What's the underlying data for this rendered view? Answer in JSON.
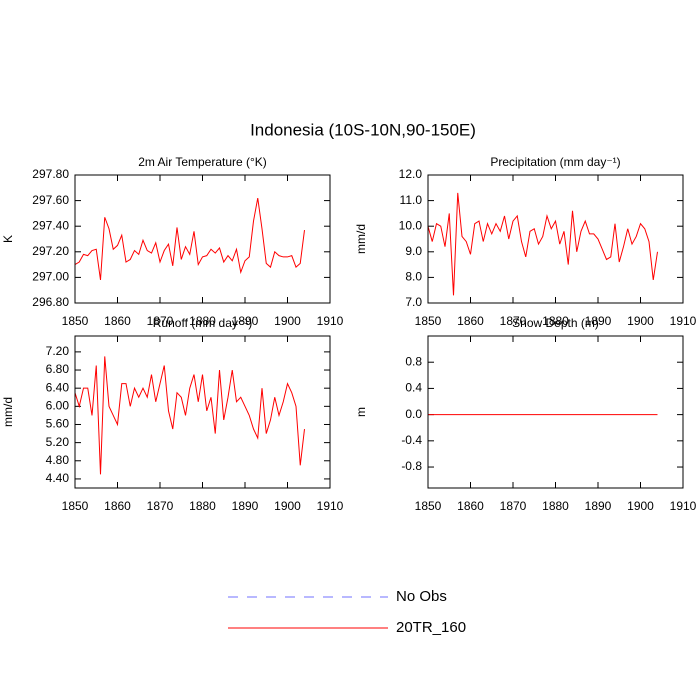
{
  "title": "Indonesia (10S-10N,90-150E)",
  "legend": [
    {
      "label": "No Obs",
      "color": "#7070ff",
      "style": "dashed"
    },
    {
      "label": "20TR_160",
      "color": "#ff0000",
      "style": "solid"
    }
  ],
  "chart_data": [
    {
      "type": "line",
      "title": "2m Air Temperature (°K)",
      "ylabel": "K",
      "x": [
        1850,
        1851,
        1852,
        1853,
        1854,
        1855,
        1856,
        1857,
        1858,
        1859,
        1860,
        1861,
        1862,
        1863,
        1864,
        1865,
        1866,
        1867,
        1868,
        1869,
        1870,
        1871,
        1872,
        1873,
        1874,
        1875,
        1876,
        1877,
        1878,
        1879,
        1880,
        1881,
        1882,
        1883,
        1884,
        1885,
        1886,
        1887,
        1888,
        1889,
        1890,
        1891,
        1892,
        1893,
        1894,
        1895,
        1896,
        1897,
        1898,
        1899,
        1900,
        1901,
        1902,
        1903,
        1904
      ],
      "series": [
        {
          "color": "#ff0000",
          "values": [
            297.1,
            297.12,
            297.18,
            297.17,
            297.21,
            297.22,
            296.98,
            297.47,
            297.38,
            297.22,
            297.25,
            297.33,
            297.12,
            297.14,
            297.21,
            297.18,
            297.29,
            297.21,
            297.19,
            297.27,
            297.12,
            297.21,
            297.26,
            297.09,
            297.39,
            297.14,
            297.24,
            297.18,
            297.36,
            297.1,
            297.16,
            297.17,
            297.22,
            297.19,
            297.23,
            297.12,
            297.17,
            297.13,
            297.22,
            297.04,
            297.13,
            297.16,
            297.44,
            297.62,
            297.38,
            297.11,
            297.08,
            297.2,
            297.17,
            297.16,
            297.16,
            297.17,
            297.08,
            297.11,
            297.37
          ]
        }
      ],
      "xlim": [
        1850,
        1910
      ],
      "xticks": [
        1850,
        1860,
        1870,
        1880,
        1890,
        1900,
        1910
      ],
      "ylim": [
        296.8,
        297.8
      ],
      "yticks": [
        {
          "value": 296.8,
          "label": "296.80"
        },
        {
          "value": 297.0,
          "label": "297.00"
        },
        {
          "value": 297.2,
          "label": "297.20"
        },
        {
          "value": 297.4,
          "label": "297.40"
        },
        {
          "value": 297.6,
          "label": "297.60"
        },
        {
          "value": 297.8,
          "label": "297.80"
        }
      ]
    },
    {
      "type": "line",
      "title": "Precipitation (mm day⁻¹)",
      "ylabel": "mm/d",
      "x": [
        1850,
        1851,
        1852,
        1853,
        1854,
        1855,
        1856,
        1857,
        1858,
        1859,
        1860,
        1861,
        1862,
        1863,
        1864,
        1865,
        1866,
        1867,
        1868,
        1869,
        1870,
        1871,
        1872,
        1873,
        1874,
        1875,
        1876,
        1877,
        1878,
        1879,
        1880,
        1881,
        1882,
        1883,
        1884,
        1885,
        1886,
        1887,
        1888,
        1889,
        1890,
        1891,
        1892,
        1893,
        1894,
        1895,
        1896,
        1897,
        1898,
        1899,
        1900,
        1901,
        1902,
        1903,
        1904
      ],
      "series": [
        {
          "color": "#ff0000",
          "values": [
            10.0,
            9.4,
            10.1,
            10.0,
            9.2,
            10.5,
            7.3,
            11.3,
            9.6,
            9.4,
            8.9,
            10.1,
            10.2,
            9.4,
            10.1,
            9.7,
            10.1,
            9.8,
            10.4,
            9.5,
            10.2,
            10.4,
            9.4,
            8.8,
            9.8,
            9.9,
            9.3,
            9.6,
            10.4,
            9.9,
            10.2,
            9.3,
            9.8,
            8.5,
            10.6,
            9.0,
            9.8,
            10.2,
            9.7,
            9.7,
            9.5,
            9.1,
            8.7,
            8.8,
            10.1,
            8.6,
            9.2,
            9.9,
            9.3,
            9.6,
            10.1,
            9.9,
            9.4,
            7.9,
            9.0
          ]
        }
      ],
      "xlim": [
        1850,
        1910
      ],
      "xticks": [
        1850,
        1860,
        1870,
        1880,
        1890,
        1900,
        1910
      ],
      "ylim": [
        7,
        12
      ],
      "yticks": [
        {
          "value": 7,
          "label": "7.0"
        },
        {
          "value": 8,
          "label": "8.0"
        },
        {
          "value": 9,
          "label": "9.0"
        },
        {
          "value": 10,
          "label": "10.0"
        },
        {
          "value": 11,
          "label": "11.0"
        },
        {
          "value": 12,
          "label": "12.0"
        }
      ]
    },
    {
      "type": "line",
      "title": "Runoff (mm day⁻¹)",
      "ylabel": "mm/d",
      "x": [
        1850,
        1851,
        1852,
        1853,
        1854,
        1855,
        1856,
        1857,
        1858,
        1859,
        1860,
        1861,
        1862,
        1863,
        1864,
        1865,
        1866,
        1867,
        1868,
        1869,
        1870,
        1871,
        1872,
        1873,
        1874,
        1875,
        1876,
        1877,
        1878,
        1879,
        1880,
        1881,
        1882,
        1883,
        1884,
        1885,
        1886,
        1887,
        1888,
        1889,
        1890,
        1891,
        1892,
        1893,
        1894,
        1895,
        1896,
        1897,
        1898,
        1899,
        1900,
        1901,
        1902,
        1903,
        1904
      ],
      "series": [
        {
          "color": "#ff0000",
          "values": [
            6.3,
            6.0,
            6.4,
            6.4,
            5.8,
            6.9,
            4.5,
            7.1,
            6.0,
            5.8,
            5.6,
            6.5,
            6.5,
            6.0,
            6.4,
            6.2,
            6.4,
            6.2,
            6.7,
            6.1,
            6.5,
            6.9,
            5.9,
            5.5,
            6.3,
            6.2,
            5.8,
            6.4,
            6.7,
            6.1,
            6.7,
            5.9,
            6.2,
            5.4,
            6.8,
            5.7,
            6.2,
            6.8,
            6.1,
            6.2,
            6.0,
            5.8,
            5.5,
            5.3,
            6.4,
            5.4,
            5.7,
            6.2,
            5.8,
            6.1,
            6.5,
            6.3,
            6.0,
            4.7,
            5.5
          ]
        }
      ],
      "xlim": [
        1850,
        1910
      ],
      "xticks": [
        1850,
        1860,
        1870,
        1880,
        1890,
        1900,
        1910
      ],
      "ylim": [
        4.2,
        7.55
      ],
      "yticks": [
        {
          "value": 4.4,
          "label": "4.40"
        },
        {
          "value": 4.8,
          "label": "4.80"
        },
        {
          "value": 5.2,
          "label": "5.20"
        },
        {
          "value": 5.6,
          "label": "5.60"
        },
        {
          "value": 6.0,
          "label": "6.00"
        },
        {
          "value": 6.4,
          "label": "6.40"
        },
        {
          "value": 6.8,
          "label": "6.80"
        },
        {
          "value": 7.2,
          "label": "7.20"
        }
      ]
    },
    {
      "type": "line",
      "title": "Snow Depth (m)",
      "ylabel": "m",
      "x": [
        1850,
        1851,
        1852,
        1853,
        1854,
        1855,
        1856,
        1857,
        1858,
        1859,
        1860,
        1861,
        1862,
        1863,
        1864,
        1865,
        1866,
        1867,
        1868,
        1869,
        1870,
        1871,
        1872,
        1873,
        1874,
        1875,
        1876,
        1877,
        1878,
        1879,
        1880,
        1881,
        1882,
        1883,
        1884,
        1885,
        1886,
        1887,
        1888,
        1889,
        1890,
        1891,
        1892,
        1893,
        1894,
        1895,
        1896,
        1897,
        1898,
        1899,
        1900,
        1901,
        1902,
        1903,
        1904
      ],
      "series": [
        {
          "color": "#ff0000",
          "values": [
            0,
            0,
            0,
            0,
            0,
            0,
            0,
            0,
            0,
            0,
            0,
            0,
            0,
            0,
            0,
            0,
            0,
            0,
            0,
            0,
            0,
            0,
            0,
            0,
            0,
            0,
            0,
            0,
            0,
            0,
            0,
            0,
            0,
            0,
            0,
            0,
            0,
            0,
            0,
            0,
            0,
            0,
            0,
            0,
            0,
            0,
            0,
            0,
            0,
            0,
            0,
            0,
            0,
            0,
            0
          ]
        }
      ],
      "xlim": [
        1850,
        1910
      ],
      "xticks": [
        1850,
        1860,
        1870,
        1880,
        1890,
        1900,
        1910
      ],
      "ylim": [
        -1.12,
        1.2
      ],
      "yticks": [
        -0.8,
        -0.4,
        {
          "value": 0,
          "label": "0.0"
        },
        0.4,
        0.8
      ]
    }
  ]
}
